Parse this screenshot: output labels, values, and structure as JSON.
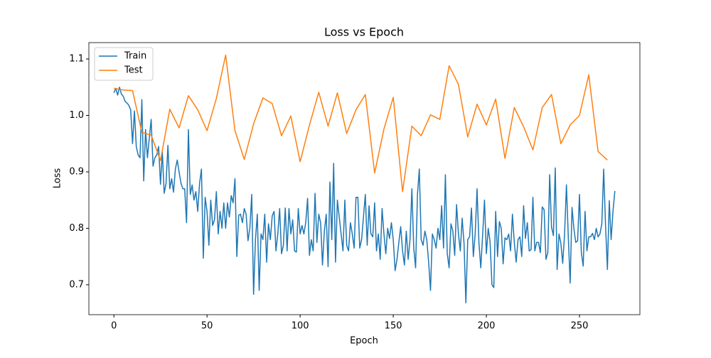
{
  "chart_data": {
    "type": "line",
    "title": "Loss vs Epoch",
    "xlabel": "Epoch",
    "ylabel": "Loss",
    "xlim": [
      -13.45,
      282.45
    ],
    "ylim": [
      0.647,
      1.129
    ],
    "xticks": [
      0,
      50,
      100,
      150,
      200,
      250
    ],
    "yticks": [
      0.7,
      0.8,
      0.9,
      {
        "value": 1,
        "label": "1.0"
      },
      1.1
    ],
    "legend": "upper left",
    "series": [
      {
        "name": "Train",
        "color": "#1f77b4",
        "x": [
          0,
          1,
          2,
          3,
          4,
          5,
          6,
          7,
          8,
          9,
          10,
          11,
          12,
          13,
          14,
          15,
          16,
          17,
          18,
          19,
          20,
          21,
          22,
          23,
          24,
          25,
          26,
          27,
          28,
          29,
          30,
          31,
          32,
          33,
          34,
          35,
          36,
          37,
          38,
          39,
          40,
          41,
          42,
          43,
          44,
          45,
          46,
          47,
          48,
          49,
          50,
          51,
          52,
          53,
          54,
          55,
          56,
          57,
          58,
          59,
          60,
          61,
          62,
          63,
          64,
          65,
          66,
          67,
          68,
          69,
          70,
          71,
          72,
          73,
          74,
          75,
          76,
          77,
          78,
          79,
          80,
          81,
          82,
          83,
          84,
          85,
          86,
          87,
          88,
          89,
          90,
          91,
          92,
          93,
          94,
          95,
          96,
          97,
          98,
          99,
          100,
          101,
          102,
          103,
          104,
          105,
          106,
          107,
          108,
          109,
          110,
          111,
          112,
          113,
          114,
          115,
          116,
          117,
          118,
          119,
          120,
          121,
          122,
          123,
          124,
          125,
          126,
          127,
          128,
          129,
          130,
          131,
          132,
          133,
          134,
          135,
          136,
          137,
          138,
          139,
          140,
          141,
          142,
          143,
          144,
          145,
          146,
          147,
          148,
          149,
          150,
          151,
          152,
          153,
          154,
          155,
          156,
          157,
          158,
          159,
          160,
          161,
          162,
          163,
          164,
          165,
          166,
          167,
          168,
          169,
          170,
          171,
          172,
          173,
          174,
          175,
          176,
          177,
          178,
          179,
          180,
          181,
          182,
          183,
          184,
          185,
          186,
          187,
          188,
          189,
          190,
          191,
          192,
          193,
          194,
          195,
          196,
          197,
          198,
          199,
          200,
          201,
          202,
          203,
          204,
          205,
          206,
          207,
          208,
          209,
          210,
          211,
          212,
          213,
          214,
          215,
          216,
          217,
          218,
          219,
          220,
          221,
          222,
          223,
          224,
          225,
          226,
          227,
          228,
          229,
          230,
          231,
          232,
          233,
          234,
          235,
          236,
          237,
          238,
          239,
          240,
          241,
          242,
          243,
          244,
          245,
          246,
          247,
          248,
          249,
          250,
          251,
          252,
          253,
          254,
          255,
          256,
          257,
          258,
          259,
          260,
          261,
          262,
          263,
          264,
          265,
          266,
          267,
          268,
          269
        ],
        "values": [
          1.04,
          1.048,
          1.036,
          1.05,
          1.038,
          1.034,
          1.025,
          1.022,
          1.018,
          1.01,
          0.95,
          1.008,
          0.945,
          0.93,
          0.925,
          1.028,
          0.884,
          0.975,
          0.925,
          0.96,
          0.993,
          0.91,
          0.925,
          0.93,
          0.945,
          0.878,
          0.935,
          0.862,
          0.88,
          0.947,
          0.87,
          0.888,
          0.864,
          0.905,
          0.921,
          0.9,
          0.88,
          0.87,
          0.87,
          0.81,
          0.975,
          0.86,
          0.877,
          0.85,
          0.865,
          0.83,
          0.88,
          0.905,
          0.747,
          0.855,
          0.83,
          0.77,
          0.85,
          0.805,
          0.815,
          0.865,
          0.79,
          0.83,
          0.8,
          0.845,
          0.8,
          0.845,
          0.82,
          0.858,
          0.845,
          0.888,
          0.75,
          0.823,
          0.825,
          0.81,
          0.835,
          0.825,
          0.778,
          0.8,
          0.86,
          0.683,
          0.78,
          0.825,
          0.69,
          0.79,
          0.78,
          0.825,
          0.74,
          0.808,
          0.78,
          0.822,
          0.83,
          0.76,
          0.79,
          0.835,
          0.755,
          0.77,
          0.836,
          0.76,
          0.835,
          0.79,
          0.815,
          0.76,
          0.758,
          0.835,
          0.79,
          0.805,
          0.79,
          0.81,
          0.853,
          0.752,
          0.78,
          0.76,
          0.862,
          0.775,
          0.825,
          0.81,
          0.735,
          0.795,
          0.825,
          0.732,
          0.882,
          0.78,
          0.915,
          0.74,
          0.85,
          0.82,
          0.79,
          0.76,
          0.85,
          0.77,
          0.76,
          0.81,
          0.79,
          0.765,
          0.855,
          0.855,
          0.765,
          0.78,
          0.82,
          0.86,
          0.77,
          0.84,
          0.79,
          0.785,
          0.845,
          0.76,
          0.79,
          0.745,
          0.835,
          0.79,
          0.755,
          0.8,
          0.782,
          0.81,
          0.78,
          0.725,
          0.745,
          0.775,
          0.803,
          0.76,
          0.735,
          0.795,
          0.745,
          0.78,
          0.87,
          0.765,
          0.73,
          0.86,
          0.905,
          0.78,
          0.77,
          0.795,
          0.78,
          0.74,
          0.69,
          0.79,
          0.78,
          0.765,
          0.8,
          0.78,
          0.84,
          0.765,
          0.895,
          0.755,
          0.73,
          0.808,
          0.795,
          0.752,
          0.842,
          0.79,
          0.76,
          0.818,
          0.774,
          0.668,
          0.78,
          0.785,
          0.836,
          0.75,
          0.79,
          0.87,
          0.775,
          0.73,
          0.788,
          0.85,
          0.755,
          0.8,
          0.776,
          0.7,
          0.695,
          0.83,
          0.75,
          0.812,
          0.8,
          0.737,
          0.783,
          0.78,
          0.79,
          0.76,
          0.825,
          0.775,
          0.74,
          0.78,
          0.785,
          0.75,
          0.84,
          0.782,
          0.81,
          0.76,
          0.762,
          0.855,
          0.76,
          0.775,
          0.775,
          0.757,
          0.838,
          0.833,
          0.745,
          0.757,
          0.895,
          0.802,
          0.787,
          0.907,
          0.727,
          0.79,
          0.774,
          0.738,
          0.79,
          0.877,
          0.785,
          0.703,
          0.837,
          0.8,
          0.775,
          0.778,
          0.86,
          0.757,
          0.733,
          0.83,
          0.76,
          0.785,
          0.785,
          0.791,
          0.78,
          0.8,
          0.785,
          0.79,
          0.808,
          0.905,
          0.805,
          0.727,
          0.849,
          0.78,
          0.83,
          0.866
        ]
      },
      {
        "name": "Test",
        "color": "#ff7f0e",
        "x": [
          0,
          5,
          10,
          15,
          20,
          25,
          30,
          35,
          40,
          45,
          50,
          55,
          60,
          65,
          70,
          75,
          80,
          85,
          90,
          95,
          100,
          105,
          110,
          115,
          120,
          125,
          130,
          135,
          140,
          145,
          150,
          155,
          160,
          165,
          170,
          175,
          180,
          185,
          190,
          195,
          200,
          205,
          210,
          215,
          220,
          225,
          230,
          235,
          240,
          245,
          250,
          255,
          260,
          265
        ],
        "values": [
          1.048,
          1.045,
          1.044,
          0.97,
          0.965,
          0.92,
          1.011,
          0.978,
          1.035,
          1.01,
          0.973,
          1.03,
          1.107,
          0.973,
          0.922,
          0.985,
          1.031,
          1.021,
          0.964,
          0.999,
          0.918,
          0.983,
          1.041,
          0.981,
          1.04,
          0.968,
          1.01,
          1.037,
          0.898,
          0.976,
          1.032,
          0.865,
          0.981,
          0.964,
          1.001,
          0.993,
          1.088,
          1.055,
          0.962,
          1.02,
          0.983,
          1.029,
          0.924,
          1.014,
          0.98,
          0.939,
          1.014,
          1.037,
          0.95,
          0.983,
          1.0,
          1.072,
          0.936,
          0.921
        ]
      }
    ]
  }
}
